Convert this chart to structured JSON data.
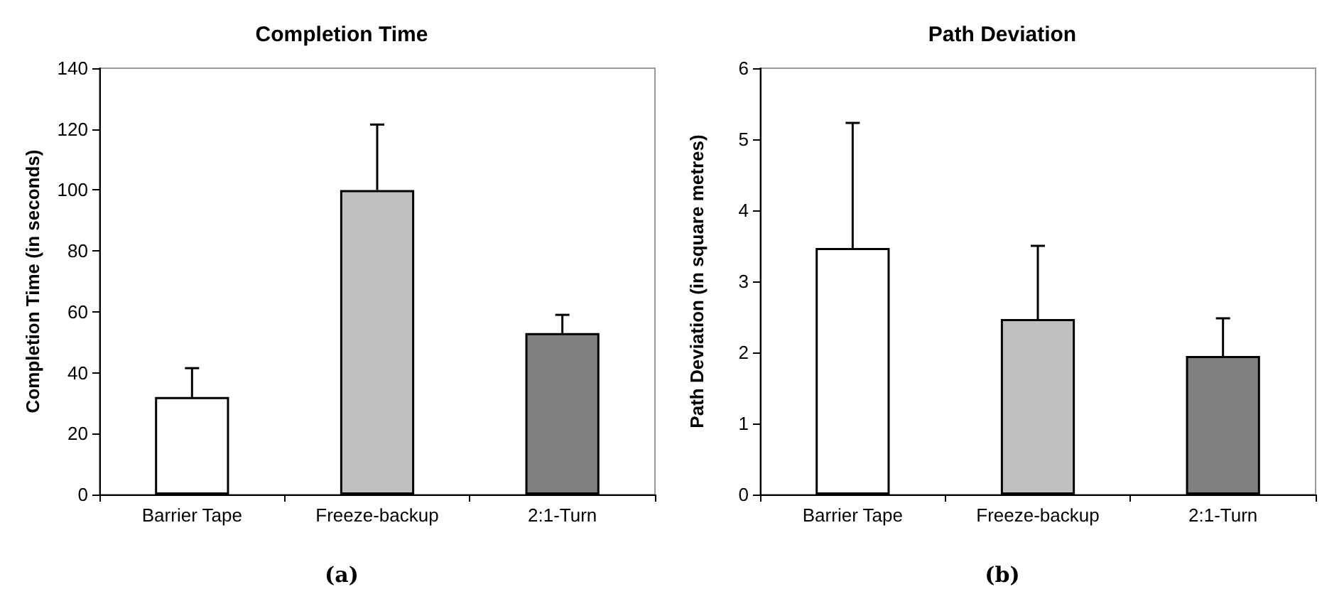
{
  "chart_data": [
    {
      "type": "bar",
      "title": "Completion Time",
      "ylabel": "Completion Time (in seconds)",
      "categories": [
        "Barrier Tape",
        "Freeze-backup",
        "2:1-Turn"
      ],
      "values": [
        32,
        100,
        53
      ],
      "colors": [
        "#ffffff",
        "#c0c0c0",
        "#808080"
      ],
      "errors": [
        [
          32,
          41.5
        ],
        [
          100,
          121.5
        ],
        [
          53,
          59
        ]
      ],
      "ylim": [
        0,
        140
      ],
      "yticks": [
        0,
        20,
        40,
        60,
        80,
        100,
        120,
        140
      ],
      "grid": false,
      "annotations": [
        "(a)"
      ]
    },
    {
      "type": "bar",
      "title": "Path Deviation",
      "ylabel": "Path Deviation (in square metres)",
      "categories": [
        "Barrier Tape",
        "Freeze-backup",
        "2:1-Turn"
      ],
      "values": [
        3.47,
        2.47,
        1.95
      ],
      "colors": [
        "#ffffff",
        "#c0c0c0",
        "#808080"
      ],
      "errors": [
        [
          3.47,
          5.23
        ],
        [
          2.47,
          3.5
        ],
        [
          1.95,
          2.48
        ]
      ],
      "ylim": [
        0,
        6
      ],
      "yticks": [
        0,
        1,
        2,
        3,
        4,
        5,
        6
      ],
      "grid": false,
      "annotations": [
        "(b)"
      ]
    }
  ]
}
